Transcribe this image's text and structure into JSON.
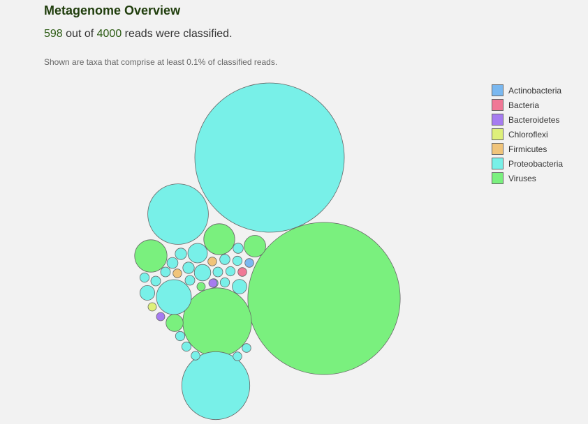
{
  "header": {
    "title": "Metagenome Overview",
    "classified": "598",
    "middle_text": " out of ",
    "total": "4000",
    "end_text": " reads were classified.",
    "note": "Shown are taxa that comprise at least 0.1% of classified reads."
  },
  "chart_data": {
    "type": "bubble",
    "legend_placement": "right",
    "legend": [
      {
        "name": "Actinobacteria",
        "color": "#7ab8f0"
      },
      {
        "name": "Bacteria",
        "color": "#f07896"
      },
      {
        "name": "Bacteroidetes",
        "color": "#a67cf0"
      },
      {
        "name": "Chloroflexi",
        "color": "#def07a"
      },
      {
        "name": "Firmicutes",
        "color": "#f0c47a"
      },
      {
        "name": "Proteobacteria",
        "color": "#78f0e8"
      },
      {
        "name": "Viruses",
        "color": "#7af07e"
      }
    ],
    "bubbles": [
      {
        "group": "Viruses",
        "value": 266
      },
      {
        "group": "Proteobacteria",
        "value": 256
      },
      {
        "group": "Viruses",
        "value": 54
      },
      {
        "group": "Proteobacteria",
        "value": 53
      },
      {
        "group": "Proteobacteria",
        "value": 42
      },
      {
        "group": "Proteobacteria",
        "value": 14
      },
      {
        "group": "Viruses",
        "value": 12
      },
      {
        "group": "Viruses",
        "value": 11
      },
      {
        "group": "Viruses",
        "value": 5.4
      },
      {
        "group": "Viruses",
        "value": 3.4
      },
      {
        "group": "Proteobacteria",
        "value": 4.4
      },
      {
        "group": "Proteobacteria",
        "value": 3.1
      },
      {
        "group": "Proteobacteria",
        "value": 2.5
      },
      {
        "group": "Proteobacteria",
        "value": 2.4
      },
      {
        "group": "Proteobacteria",
        "value": 1.5
      },
      {
        "group": "Proteobacteria",
        "value": 1.5
      },
      {
        "group": "Proteobacteria",
        "value": 1.4
      },
      {
        "group": "Proteobacteria",
        "value": 1.2
      },
      {
        "group": "Proteobacteria",
        "value": 1.2
      },
      {
        "group": "Proteobacteria",
        "value": 1.1
      },
      {
        "group": "Proteobacteria",
        "value": 1.1
      },
      {
        "group": "Proteobacteria",
        "value": 1.1
      },
      {
        "group": "Proteobacteria",
        "value": 1.1
      },
      {
        "group": "Proteobacteria",
        "value": 1.0
      },
      {
        "group": "Proteobacteria",
        "value": 1.0
      },
      {
        "group": "Proteobacteria",
        "value": 1.0
      },
      {
        "group": "Proteobacteria",
        "value": 1.0
      },
      {
        "group": "Proteobacteria",
        "value": 1.0
      },
      {
        "group": "Proteobacteria",
        "value": 1.0
      },
      {
        "group": "Proteobacteria",
        "value": 0.9
      },
      {
        "group": "Proteobacteria",
        "value": 0.9
      },
      {
        "group": "Proteobacteria",
        "value": 0.9
      },
      {
        "group": "Proteobacteria",
        "value": 0.9
      },
      {
        "group": "Proteobacteria",
        "value": 0.9
      },
      {
        "group": "Actinobacteria",
        "value": 0.9
      },
      {
        "group": "Bacteria",
        "value": 0.9
      },
      {
        "group": "Firmicutes",
        "value": 0.9
      },
      {
        "group": "Firmicutes",
        "value": 0.9
      },
      {
        "group": "Bacteroidetes",
        "value": 0.8
      },
      {
        "group": "Bacteroidetes",
        "value": 0.8
      },
      {
        "group": "Chloroflexi",
        "value": 0.8
      },
      {
        "group": "Viruses",
        "value": 0.8
      }
    ]
  }
}
